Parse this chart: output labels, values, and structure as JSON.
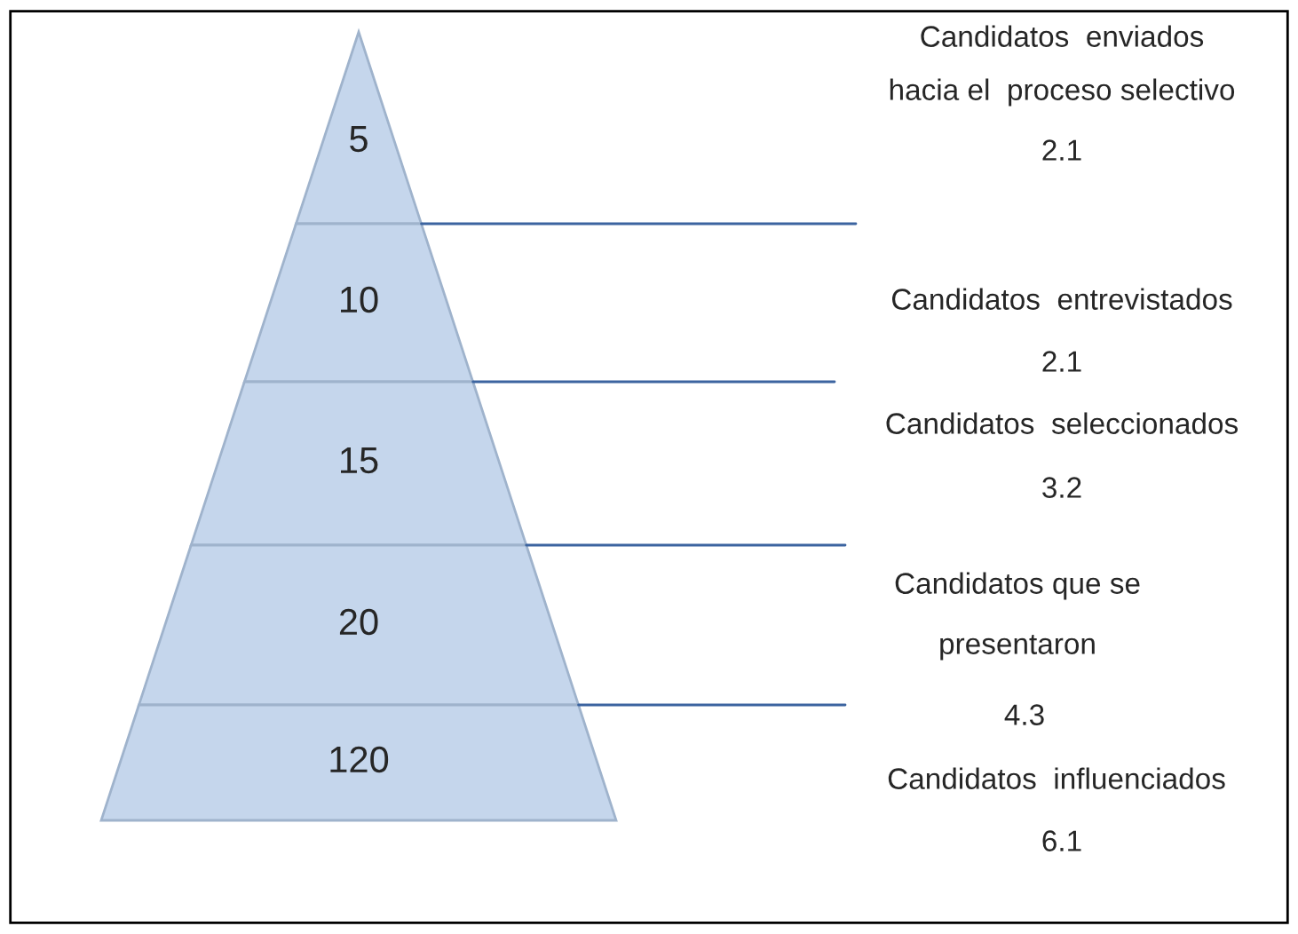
{
  "chart_data": {
    "type": "other",
    "categories": [
      "Candidatos  enviados\nhacia el  proceso selectivo",
      "Candidatos  entrevistados",
      "Candidatos  seleccionados",
      "Candidatos que se\npresentaron",
      "Candidatos  influenciados"
    ],
    "values": [
      5,
      10,
      15,
      20,
      120
    ],
    "color": "#c5d6ec",
    "data_labels": true,
    "annotations": [
      "2.1",
      "2.1",
      "3.2",
      "4.3",
      "6.1"
    ]
  }
}
